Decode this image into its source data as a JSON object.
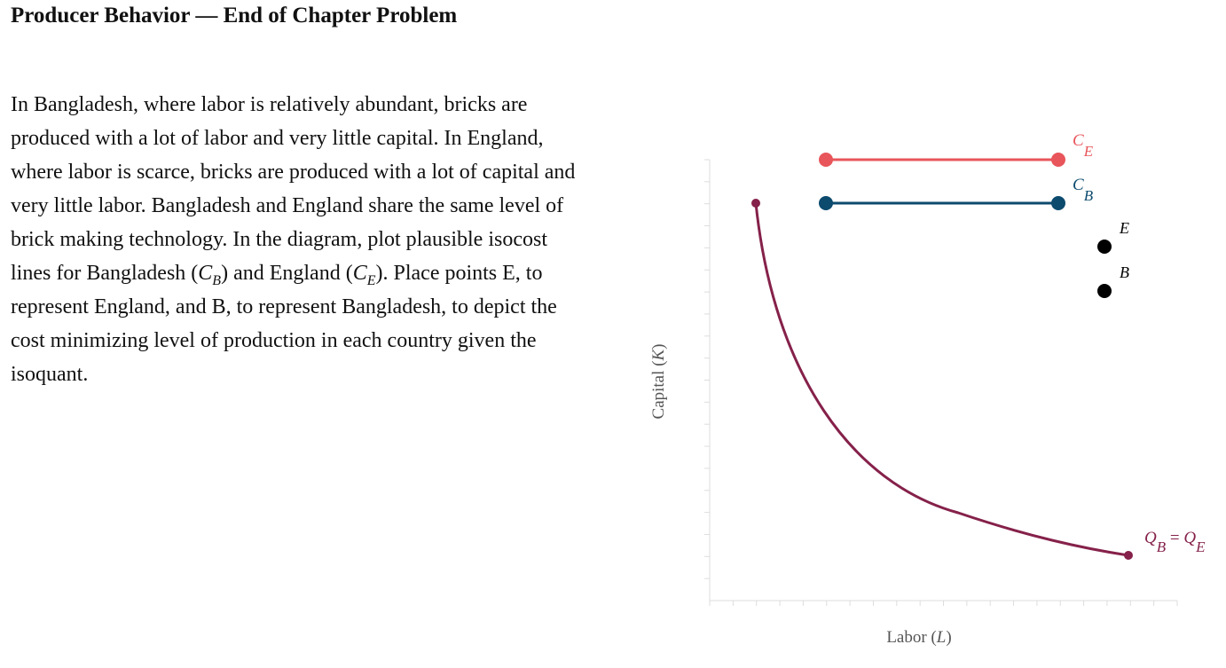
{
  "header": {
    "title": "Producer Behavior — End of Chapter Problem"
  },
  "problem": {
    "text": [
      "In Bangladesh, where labor is relatively abundant, bricks are produced with a lot of labor and very little capital. In England, where labor is scarce, bricks are produced with a lot of capital and very little labor. Bangladesh and England share the same level of brick making technology. In the diagram, plot plausible isocost lines for Bangladesh (",
      "C",
      "B",
      ") and England (",
      "C",
      "E",
      "). Place points E, to represent England, and B, to represent Bangladesh, to depict the cost minimizing level of production in each country given the isoquant."
    ]
  },
  "graph": {
    "y_axis_label": [
      "Capital (",
      "K",
      ")"
    ],
    "x_axis_label": [
      "Labor (",
      "L",
      ")"
    ],
    "isocost_E": {
      "symbol": "C",
      "subscript": "E"
    },
    "isocost_B": {
      "symbol": "C",
      "subscript": "B"
    },
    "point_E": "E",
    "point_B": "B",
    "isoquant": {
      "label": [
        "Q",
        "B",
        " = ",
        "Q",
        "E"
      ]
    }
  }
}
